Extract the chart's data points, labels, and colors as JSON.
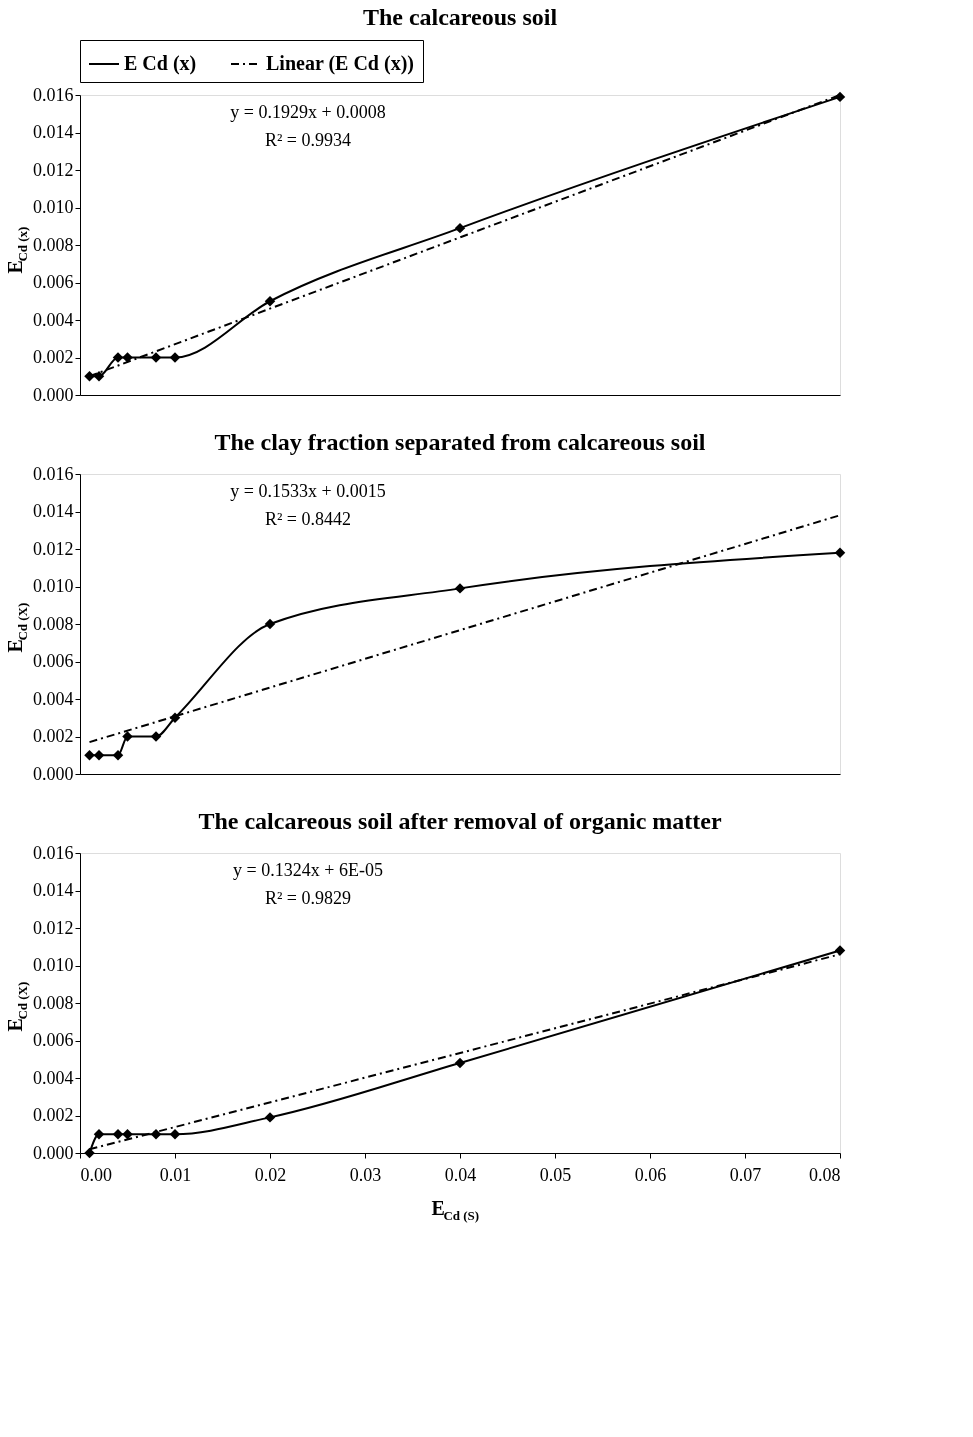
{
  "chart_data": [
    {
      "type": "line",
      "title": "The calcareous soil",
      "ylabel": "E$_{Cd (x)}$",
      "marker": "diamond",
      "grid": false,
      "legend": "top",
      "tick_labels": "y",
      "xlim": [
        0,
        0.08
      ],
      "ylim": [
        0,
        0.016
      ],
      "yticks": [
        {
          "value": 0,
          "label": "0.000"
        },
        {
          "value": 0.002,
          "label": "0.002"
        },
        {
          "value": 0.004,
          "label": "0.004"
        },
        {
          "value": 0.006,
          "label": "0.006"
        },
        {
          "value": 0.008,
          "label": "0.008"
        },
        {
          "value": 0.01,
          "label": "0.010"
        },
        {
          "value": 0.012,
          "label": "0.012"
        },
        {
          "value": 0.014,
          "label": "0.014"
        },
        {
          "value": 0.016,
          "label": "0.016"
        }
      ],
      "annotations": [
        "y = 0.1929x + 0.0008",
        "R² = 0.9934"
      ],
      "series": [
        {
          "name": "E Cd (x)",
          "color": "#000000",
          "x": [
            0.001,
            0.002,
            0.004,
            0.005,
            0.008,
            0.01,
            0.02,
            0.04,
            0.08
          ],
          "values": [
            0.001,
            0.001,
            0.002,
            0.002,
            0.002,
            0.002,
            0.005,
            0.0089,
            0.0159
          ]
        },
        {
          "name": "Linear (E Cd (x))",
          "type": "line",
          "marker": "none",
          "line_style": "dashed",
          "color": "#000000",
          "x": [
            0.001,
            0.08
          ],
          "values": [
            0.001,
            0.016
          ]
        }
      ]
    },
    {
      "type": "line",
      "title": "The clay fraction separated from calcareous soil",
      "ylabel": "E$_{Cd (X)}$",
      "marker": "diamond",
      "grid": false,
      "tick_labels": "y",
      "xlim": [
        0,
        0.08
      ],
      "ylim": [
        0,
        0.016
      ],
      "yticks": [
        {
          "value": 0,
          "label": "0.000"
        },
        {
          "value": 0.002,
          "label": "0.002"
        },
        {
          "value": 0.004,
          "label": "0.004"
        },
        {
          "value": 0.006,
          "label": "0.006"
        },
        {
          "value": 0.008,
          "label": "0.008"
        },
        {
          "value": 0.01,
          "label": "0.010"
        },
        {
          "value": 0.012,
          "label": "0.012"
        },
        {
          "value": 0.014,
          "label": "0.014"
        },
        {
          "value": 0.016,
          "label": "0.016"
        }
      ],
      "annotations": [
        "y = 0.1533x + 0.0015",
        "R² = 0.8442"
      ],
      "series": [
        {
          "color": "#000000",
          "x": [
            0.001,
            0.002,
            0.004,
            0.005,
            0.008,
            0.01,
            0.02,
            0.04,
            0.08
          ],
          "values": [
            0.001,
            0.001,
            0.001,
            0.002,
            0.002,
            0.003,
            0.008,
            0.0099,
            0.0118
          ]
        },
        {
          "type": "line",
          "marker": "none",
          "line_style": "dashed",
          "color": "#000000",
          "x": [
            0.001,
            0.08
          ],
          "values": [
            0.0017,
            0.0138
          ]
        }
      ]
    },
    {
      "type": "line",
      "title": "The calcareous soil after removal of organic matter",
      "ylabel": "E$_{Cd (X)}$",
      "xlabel": "E$_{Cd (S)}$",
      "marker": "diamond",
      "grid": false,
      "xlim": [
        0,
        0.08
      ],
      "ylim": [
        0,
        0.016
      ],
      "xticks": [
        {
          "value": 0,
          "label": "0.00"
        },
        {
          "value": 0.01,
          "label": "0.01"
        },
        {
          "value": 0.02,
          "label": "0.02"
        },
        {
          "value": 0.03,
          "label": "0.03"
        },
        {
          "value": 0.04,
          "label": "0.04"
        },
        {
          "value": 0.05,
          "label": "0.05"
        },
        {
          "value": 0.06,
          "label": "0.06"
        },
        {
          "value": 0.07,
          "label": "0.07"
        },
        {
          "value": 0.08,
          "label": "0.08"
        }
      ],
      "yticks": [
        {
          "value": 0,
          "label": "0.000"
        },
        {
          "value": 0.002,
          "label": "0.002"
        },
        {
          "value": 0.004,
          "label": "0.004"
        },
        {
          "value": 0.006,
          "label": "0.006"
        },
        {
          "value": 0.008,
          "label": "0.008"
        },
        {
          "value": 0.01,
          "label": "0.010"
        },
        {
          "value": 0.012,
          "label": "0.012"
        },
        {
          "value": 0.014,
          "label": "0.014"
        },
        {
          "value": 0.016,
          "label": "0.016"
        }
      ],
      "annotations": [
        "y = 0.1324x + 6E-05",
        "R² = 0.9829"
      ],
      "series": [
        {
          "color": "#000000",
          "x": [
            0.001,
            0.002,
            0.004,
            0.005,
            0.008,
            0.01,
            0.02,
            0.04,
            0.08
          ],
          "values": [
            0.0,
            0.001,
            0.001,
            0.001,
            0.001,
            0.001,
            0.0019,
            0.0048,
            0.0108
          ]
        },
        {
          "type": "line",
          "marker": "none",
          "line_style": "dashed",
          "color": "#000000",
          "x": [
            0.001,
            0.08
          ],
          "values": [
            0.0002,
            0.0106
          ]
        }
      ]
    }
  ]
}
